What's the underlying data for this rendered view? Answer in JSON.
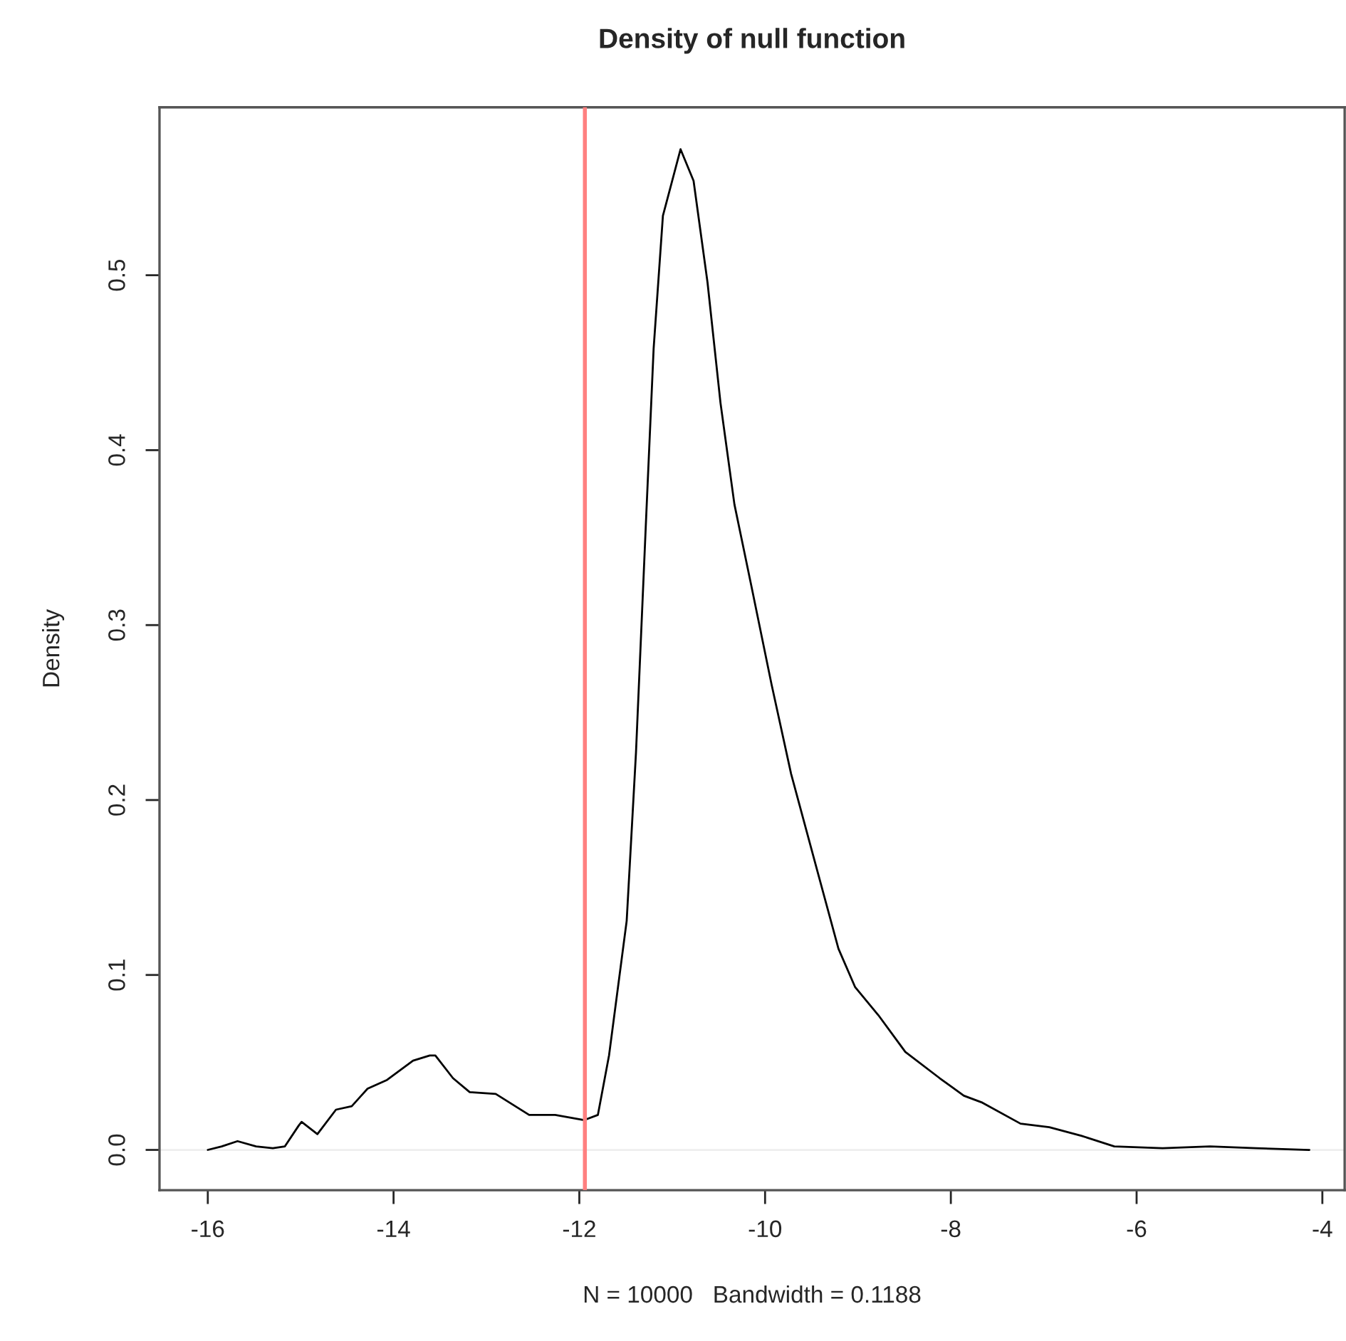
{
  "chart_data": {
    "type": "line",
    "title": "Density of null function",
    "xlabel": "N = 10000   Bandwidth = 0.1188",
    "ylabel": "Density",
    "x": [
      -16.0,
      -15.85,
      -15.68,
      -15.48,
      -15.3,
      -15.17,
      -15.02,
      -14.99,
      -14.82,
      -14.62,
      -14.45,
      -14.28,
      -14.07,
      -13.79,
      -13.61,
      -13.55,
      -13.36,
      -13.18,
      -12.9,
      -12.54,
      -12.26,
      -11.95,
      -11.8,
      -11.68,
      -11.49,
      -11.39,
      -11.28,
      -11.2,
      -11.1,
      -10.91,
      -10.77,
      -10.62,
      -10.48,
      -10.33,
      -10.15,
      -9.93,
      -9.72,
      -9.43,
      -9.21,
      -9.03,
      -8.78,
      -8.49,
      -8.12,
      -7.86,
      -7.66,
      -7.25,
      -6.94,
      -6.59,
      -6.24,
      -5.72,
      -5.21,
      -4.71,
      -4.14
    ],
    "series": [
      {
        "color": "#000000",
        "values": [
          0.0,
          0.002,
          0.005,
          0.002,
          0.001,
          0.002,
          0.014,
          0.016,
          0.009,
          0.023,
          0.025,
          0.035,
          0.04,
          0.051,
          0.054,
          0.054,
          0.041,
          0.033,
          0.032,
          0.02,
          0.02,
          0.017,
          0.02,
          0.054,
          0.131,
          0.227,
          0.362,
          0.458,
          0.534,
          0.572,
          0.554,
          0.496,
          0.427,
          0.369,
          0.323,
          0.266,
          0.215,
          0.158,
          0.115,
          0.093,
          0.077,
          0.056,
          0.041,
          0.031,
          0.027,
          0.015,
          0.013,
          0.008,
          0.002,
          0.001,
          0.002,
          0.001,
          0.0
        ]
      }
    ],
    "xlim": [
      -16.52,
      -3.76
    ],
    "ylim": [
      -0.023,
      0.596
    ],
    "xticks": [
      -16,
      -14,
      -12,
      -10,
      -8,
      -6,
      -4
    ],
    "yticks": [
      {
        "value": 0,
        "label": "0.0"
      },
      {
        "value": 0.1,
        "label": "0.1"
      },
      {
        "value": 0.2,
        "label": "0.2"
      },
      {
        "value": 0.3,
        "label": "0.3"
      },
      {
        "value": 0.4,
        "label": "0.4"
      },
      {
        "value": 0.5,
        "label": "0.5"
      }
    ],
    "ref_lines": [
      {
        "axis": "x",
        "value": -11.94,
        "color": "#ff8080"
      },
      {
        "axis": "y",
        "value": 0,
        "color": "#eeeeee"
      }
    ],
    "grid": false,
    "legend": false,
    "marker": "none",
    "line_style": "solid"
  }
}
